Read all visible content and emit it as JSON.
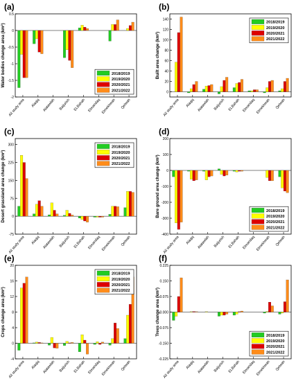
{
  "figure": {
    "series_names": [
      "2018/2019",
      "2019/2020",
      "2020/2021",
      "2021/2022"
    ],
    "series_colors": [
      "#22cc22",
      "#ffff00",
      "#dd0000",
      "#ff8c1a"
    ],
    "categories": [
      "All study area",
      "Alaqiq",
      "Alatawlah",
      "Baljurish",
      "ELBahah",
      "Elmandaq",
      "Elmekhwah",
      "Qelwah"
    ]
  },
  "chart_data": [
    {
      "panel": "(a)",
      "type": "bar",
      "ylabel": "Water bodies change area (km²)",
      "ylim": [
        -2,
        0.5
      ],
      "yticks": [
        -2,
        -1.5,
        -1,
        -0.5,
        0,
        0.5
      ],
      "ytick_labels": [
        "-2",
        "-1.5",
        "-1",
        "-0.5",
        "0",
        "0.5"
      ],
      "legend_position": "bottom-right",
      "categories": [
        "All study area",
        "Alaqiq",
        "Alatawlah",
        "Baljurish",
        "ELBahah",
        "Elmandaq",
        "Elmekhwah",
        "Qelwah"
      ],
      "series": [
        {
          "name": "2018/2019",
          "values": [
            -1.72,
            -0.4,
            0,
            -0.82,
            0.08,
            0,
            -0.32,
            0
          ]
        },
        {
          "name": "2019/2020",
          "values": [
            -0.72,
            -0.25,
            0,
            -0.58,
            0.16,
            0,
            0.18,
            0.06
          ]
        },
        {
          "name": "2020/2021",
          "values": [
            -1.42,
            -0.65,
            0,
            -0.9,
            0.1,
            0,
            0.18,
            0.15
          ]
        },
        {
          "name": "2021/2022",
          "values": [
            -1.42,
            -0.7,
            0,
            -1.12,
            0.06,
            0,
            0.32,
            0.25
          ]
        }
      ]
    },
    {
      "panel": "(b)",
      "type": "bar",
      "ylabel": "Built area change (km²)",
      "ylim": [
        -10,
        150
      ],
      "yticks": [
        0,
        20,
        40,
        60,
        80,
        100,
        120,
        140
      ],
      "ytick_labels": [
        "0",
        "20",
        "40",
        "60",
        "80",
        "100",
        "120",
        "140"
      ],
      "legend_position": "top-right",
      "categories": [
        "All study area",
        "Alaqiq",
        "Alatawlah",
        "Baljurish",
        "ELBahah",
        "Elmandaq",
        "Elmekhwah",
        "Qelwah"
      ],
      "series": [
        {
          "name": "2018/2019",
          "values": [
            0,
            -2,
            5,
            -4,
            8,
            2,
            -2,
            2
          ]
        },
        {
          "name": "2019/2020",
          "values": [
            57,
            6,
            11,
            10,
            16,
            2,
            8,
            6
          ]
        },
        {
          "name": "2020/2021",
          "values": [
            114,
            14,
            12,
            22,
            18,
            4,
            20,
            20
          ]
        },
        {
          "name": "2021/2022",
          "values": [
            144,
            20,
            14,
            28,
            24,
            4,
            22,
            26
          ]
        }
      ]
    },
    {
      "panel": "(c)",
      "type": "bar",
      "ylabel": "Desert grassland area change (km²)",
      "ylim": [
        -75,
        325
      ],
      "yticks": [
        -75,
        0,
        75,
        150,
        225,
        300
      ],
      "ytick_labels": [
        "-75",
        "0",
        "75",
        "150",
        "225",
        "300"
      ],
      "legend_position": "top-right",
      "categories": [
        "All study area",
        "Alaqiq",
        "Alatawlah",
        "Baljurish",
        "ELBahah",
        "Elmandaq",
        "Elmekhwah",
        "Qelwah"
      ],
      "series": [
        {
          "name": "2018/2019",
          "values": [
            42,
            10,
            6,
            4,
            -8,
            -4,
            8,
            36
          ]
        },
        {
          "name": "2019/2020",
          "values": [
            255,
            50,
            56,
            25,
            -14,
            -4,
            42,
            104
          ]
        },
        {
          "name": "2020/2021",
          "values": [
            225,
            65,
            25,
            12,
            -20,
            -4,
            42,
            104
          ]
        },
        {
          "name": "2021/2022",
          "values": [
            158,
            42,
            10,
            5,
            -25,
            -4,
            40,
            100
          ]
        }
      ]
    },
    {
      "panel": "(d)",
      "type": "bar",
      "ylabel": "Bare ground area change (km²)",
      "ylim": [
        -400,
        200
      ],
      "yticks": [
        -400,
        -300,
        -200,
        -100,
        0,
        100,
        200
      ],
      "ytick_labels": [
        "-400",
        "-300",
        "-200",
        "-100",
        "0",
        "100",
        "200"
      ],
      "legend_position": "bottom-right",
      "categories": [
        "All study area",
        "Alaqiq",
        "Alatawlah",
        "Baljurish",
        "ELBahah",
        "Elmandaq",
        "Elmekhwah",
        "Qelwah"
      ],
      "series": [
        {
          "name": "2018/2019",
          "values": [
            -40,
            -5,
            -5,
            10,
            -5,
            0,
            0,
            -40
          ]
        },
        {
          "name": "2019/2020",
          "values": [
            -330,
            -55,
            -60,
            -25,
            -10,
            0,
            -45,
            -110
          ]
        },
        {
          "name": "2020/2021",
          "values": [
            -370,
            -65,
            -40,
            -35,
            -5,
            0,
            -65,
            -130
          ]
        },
        {
          "name": "2021/2022",
          "values": [
            -325,
            -60,
            -35,
            -30,
            -5,
            0,
            -65,
            -140
          ]
        }
      ]
    },
    {
      "panel": "(e)",
      "type": "bar",
      "ylabel": "Crops change area (km²)",
      "ylim": [
        -4,
        20
      ],
      "yticks": [
        -4,
        0,
        4,
        8,
        12,
        16,
        20
      ],
      "ytick_labels": [
        "-4",
        "0",
        "4",
        "8",
        "12",
        "16",
        "20"
      ],
      "legend_position": "top-right",
      "categories": [
        "All study area",
        "Alaqiq",
        "Alatawlah",
        "Baljurish",
        "ELBahah",
        "Elmandaq",
        "Elmekhwah",
        "Qelwah"
      ],
      "series": [
        {
          "name": "2018/2019",
          "values": [
            -1.8,
            0.1,
            -0.5,
            -0.6,
            -2.2,
            -0.3,
            -0.5,
            1.2
          ]
        },
        {
          "name": "2019/2020",
          "values": [
            14.2,
            0.3,
            1.5,
            0.5,
            2.2,
            0.4,
            1.2,
            7.2
          ]
        },
        {
          "name": "2020/2021",
          "values": [
            15.4,
            0.2,
            -1.2,
            0.1,
            0.8,
            -0.3,
            5.2,
            10
          ]
        },
        {
          "name": "2021/2022",
          "values": [
            17,
            0.1,
            -1.3,
            0.2,
            -2.8,
            0.3,
            3.8,
            17
          ]
        }
      ]
    },
    {
      "panel": "(f)",
      "type": "bar",
      "ylabel": "Trees change area (km²)",
      "ylim": [
        -0.225,
        0.225
      ],
      "yticks": [
        -0.225,
        -0.15,
        -0.075,
        0,
        0.075,
        0.15,
        0.225
      ],
      "ytick_labels": [
        "-0.225",
        "-0.150",
        "-0.075",
        "0.000",
        "0.075",
        "0.150",
        "0.225"
      ],
      "legend_position": "bottom-right",
      "categories": [
        "All study area",
        "Alaqiq",
        "Alatawlah",
        "Baljurish",
        "ELBahah",
        "Elmandaq",
        "Elmekhwah",
        "Qelwah"
      ],
      "series": [
        {
          "name": "2018/2019",
          "values": [
            -0.04,
            0,
            0,
            -0.02,
            -0.015,
            0,
            -0.005,
            -0.01
          ]
        },
        {
          "name": "2019/2020",
          "values": [
            -0.02,
            0.002,
            0.002,
            -0.015,
            -0.01,
            0,
            0.003,
            -0.005
          ]
        },
        {
          "name": "2020/2021",
          "values": [
            0.075,
            0.003,
            0,
            -0.015,
            0.002,
            0,
            0.048,
            0.05
          ]
        },
        {
          "name": "2021/2022",
          "values": [
            0.165,
            0.002,
            0,
            -0.01,
            0.005,
            0,
            0.03,
            0.155
          ]
        }
      ]
    }
  ]
}
